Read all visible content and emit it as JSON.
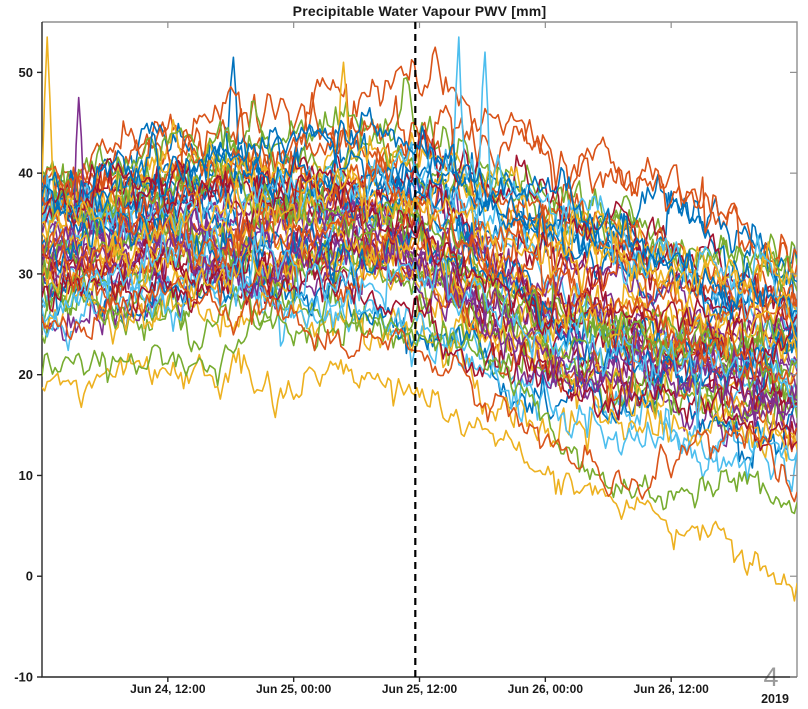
{
  "overlay": {
    "page_number": "4"
  },
  "style": {
    "palette": [
      "#0072BD",
      "#D95319",
      "#EDB120",
      "#7E2F8E",
      "#77AC30",
      "#4DBEEE",
      "#A2142F"
    ],
    "axis_dark": "#262626",
    "axis_light": "#8f8f8f",
    "label_color": "#1a1a1a",
    "page_number_color": "#9b9b9b",
    "background": "#ffffff"
  },
  "chart_data": {
    "type": "line",
    "title": "Precipitable Water Vapour PWV [mm]",
    "xlabel": "",
    "ylabel": "",
    "grid": false,
    "legend": null,
    "x_axis": {
      "kind": "datetime",
      "range_hours": [
        0,
        72
      ],
      "start": "Jun 24, 00:00",
      "end": "Jun 27, 00:00",
      "year_label": "2019",
      "ticks": [
        {
          "hour": 12,
          "label": "Jun 24, 12:00"
        },
        {
          "hour": 24,
          "label": "Jun 25, 00:00"
        },
        {
          "hour": 36,
          "label": "Jun 25, 12:00"
        },
        {
          "hour": 48,
          "label": "Jun 26, 00:00"
        },
        {
          "hour": 60,
          "label": "Jun 26, 12:00"
        }
      ]
    },
    "y_axis": {
      "lim": [
        -10,
        55
      ],
      "ticks": [
        -10,
        0,
        10,
        20,
        30,
        40,
        50
      ]
    },
    "vline": {
      "hour": 35.6,
      "style": "dashed",
      "color": "#000000",
      "width": 2.2,
      "dash": "7 5"
    },
    "ensemble": {
      "description": "ensemble of PWV forecast members [mm]; values read off axes, bundle rises to ~35-53 before the dashed line then declines and spreads to ~3-32",
      "n_regular_members": 52,
      "seed": 42,
      "sample_step_hours": 0.25,
      "line_width": 1.6,
      "hours": [
        0,
        6,
        12,
        18,
        24,
        30,
        36,
        42,
        48,
        54,
        60,
        66,
        72
      ],
      "mean": [
        33,
        34,
        35,
        35.5,
        35,
        35.5,
        34.5,
        31,
        28.5,
        26.5,
        25,
        23.5,
        22
      ],
      "spread": [
        4.2,
        4.4,
        4.8,
        4.8,
        4.8,
        5.2,
        5.8,
        6.2,
        6.4,
        6.4,
        6.2,
        5.8,
        5.4
      ],
      "upper_envelope": [
        48,
        48,
        50,
        50,
        49,
        50,
        53,
        47,
        45,
        43.5,
        42,
        41,
        37
      ],
      "lower_envelope": [
        17,
        18,
        18,
        17,
        18,
        19,
        17.5,
        14,
        9,
        5.5,
        4.5,
        5,
        3
      ],
      "low_outlier_members": [
        {
          "name": "lowest-yellow-member",
          "color_index": 2,
          "values": [
            18,
            19,
            18.5,
            17.5,
            18.5,
            19.5,
            18,
            15,
            10.5,
            6.5,
            5,
            5.5,
            3.5
          ]
        },
        {
          "name": "low-green-member",
          "color_index": 4,
          "values": [
            21,
            22.5,
            23,
            22,
            24,
            26,
            24.5,
            19.5,
            14,
            9,
            8,
            11.5,
            7
          ]
        },
        {
          "name": "low-orange-member",
          "color_index": 1,
          "values": [
            25,
            24,
            26,
            23.5,
            25,
            22.5,
            21,
            17,
            13.5,
            10,
            9.5,
            12.5,
            8
          ]
        }
      ],
      "notable_spikes": [
        {
          "hour": 0.6,
          "value": 53.5,
          "color_index": 2
        },
        {
          "hour": 3.5,
          "value": 47.5,
          "color_index": 3
        },
        {
          "hour": 18.2,
          "value": 51.5,
          "color_index": 0
        },
        {
          "hour": 28.8,
          "value": 51.0,
          "color_index": 2
        },
        {
          "hour": 37.5,
          "value": 52.5,
          "color_index": 1
        },
        {
          "hour": 39.8,
          "value": 53.5,
          "color_index": 5
        },
        {
          "hour": 42.3,
          "value": 52.0,
          "color_index": 5
        }
      ],
      "noise": {
        "walk_persist": 0.985,
        "walk_amp": 0.42,
        "hf_persist": 0.58,
        "hf_amp": 0.85,
        "spike_prob": 0.012,
        "spike_decay": 0.82
      }
    }
  }
}
